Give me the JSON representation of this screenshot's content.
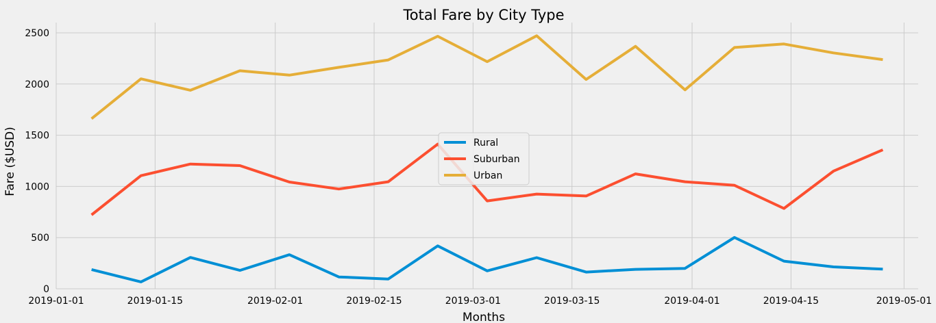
{
  "chart_data": {
    "type": "line",
    "title": "Total Fare by City Type",
    "xlabel": "Months",
    "ylabel": "Fare ($USD)",
    "x": [
      "2019-01-06",
      "2019-01-13",
      "2019-01-20",
      "2019-01-27",
      "2019-02-03",
      "2019-02-10",
      "2019-02-17",
      "2019-02-24",
      "2019-03-03",
      "2019-03-10",
      "2019-03-17",
      "2019-03-24",
      "2019-03-31",
      "2019-04-07",
      "2019-04-14",
      "2019-04-21",
      "2019-04-28"
    ],
    "xlim": [
      "2019-01-01",
      "2019-05-03"
    ],
    "xticks": [
      "2019-01-01",
      "2019-01-15",
      "2019-02-01",
      "2019-02-15",
      "2019-03-01",
      "2019-03-15",
      "2019-04-01",
      "2019-04-15",
      "2019-05-01"
    ],
    "ylim": [
      0,
      2600
    ],
    "yticks": [
      0,
      500,
      1000,
      1500,
      2000,
      2500
    ],
    "grid": true,
    "legend_position": "center",
    "series": [
      {
        "name": "Rural",
        "color": "#008fd5",
        "values": [
          187.92,
          67.65,
          306.0,
          179.69,
          333.08,
          115.8,
          95.82,
          419.06,
          175.14,
          303.94,
          163.39,
          189.76,
          199.42,
          501.24,
          269.79,
          214.14,
          191.85
        ]
      },
      {
        "name": "Suburban",
        "color": "#fc4f30",
        "values": [
          721.6,
          1105.13,
          1218.2,
          1203.28,
          1042.79,
          974.34,
          1045.5,
          1412.74,
          858.46,
          925.27,
          906.2,
          1122.2,
          1045.06,
          1010.73,
          784.82,
          1149.27,
          1357.75
        ]
      },
      {
        "name": "Urban",
        "color": "#e5ae38",
        "values": [
          1661.68,
          2050.43,
          1939.02,
          2129.51,
          2086.94,
          2162.64,
          2235.07,
          2466.29,
          2218.2,
          2470.93,
          2044.42,
          2368.37,
          1942.77,
          2356.7,
          2390.72,
          2303.8,
          2238.29
        ]
      }
    ]
  }
}
